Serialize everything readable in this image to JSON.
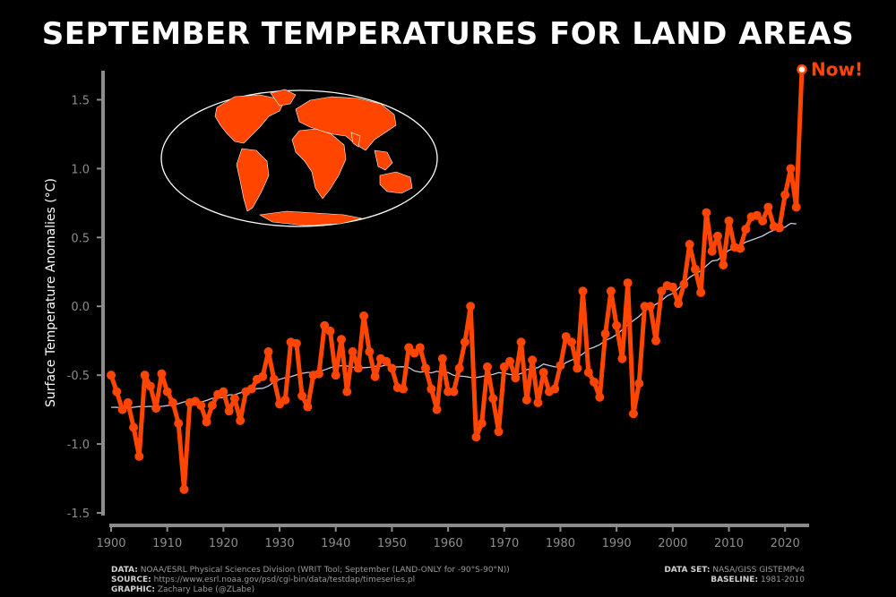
{
  "chart_data": {
    "type": "line",
    "title": "SEPTEMBER TEMPERATURES FOR LAND AREAS",
    "ylabel": "Surface Temperature Anomalies (°C)",
    "xlabel": "",
    "xlim": [
      1900,
      2023
    ],
    "ylim": [
      -1.5,
      1.75
    ],
    "xticks": [
      1900,
      1910,
      1920,
      1930,
      1940,
      1950,
      1960,
      1970,
      1980,
      1990,
      2000,
      2010,
      2020
    ],
    "yticks": [
      -1.5,
      -1.0,
      -0.5,
      0.0,
      0.5,
      1.0,
      1.5
    ],
    "annotation": "Now!",
    "colors": {
      "series": "#ff4500",
      "trend": "#c8c8e6",
      "background": "#000000",
      "axis": "#8c8c8c"
    },
    "series": [
      {
        "values": [
          [
            1900,
            -0.5
          ],
          [
            1901,
            -0.62
          ],
          [
            1902,
            -0.75
          ],
          [
            1903,
            -0.7
          ],
          [
            1904,
            -0.88
          ],
          [
            1905,
            -1.09
          ],
          [
            1906,
            -0.5
          ],
          [
            1907,
            -0.58
          ],
          [
            1908,
            -0.74
          ],
          [
            1909,
            -0.49
          ],
          [
            1910,
            -0.62
          ],
          [
            1911,
            -0.7
          ],
          [
            1912,
            -0.85
          ],
          [
            1913,
            -1.33
          ],
          [
            1914,
            -0.7
          ],
          [
            1915,
            -0.69
          ],
          [
            1916,
            -0.72
          ],
          [
            1917,
            -0.84
          ],
          [
            1918,
            -0.72
          ],
          [
            1919,
            -0.64
          ],
          [
            1920,
            -0.62
          ],
          [
            1921,
            -0.76
          ],
          [
            1922,
            -0.67
          ],
          [
            1923,
            -0.83
          ],
          [
            1924,
            -0.62
          ],
          [
            1925,
            -0.6
          ],
          [
            1926,
            -0.53
          ],
          [
            1927,
            -0.51
          ],
          [
            1928,
            -0.33
          ],
          [
            1929,
            -0.53
          ],
          [
            1930,
            -0.71
          ],
          [
            1931,
            -0.68
          ],
          [
            1932,
            -0.26
          ],
          [
            1933,
            -0.27
          ],
          [
            1934,
            -0.65
          ],
          [
            1935,
            -0.73
          ],
          [
            1936,
            -0.5
          ],
          [
            1937,
            -0.49
          ],
          [
            1938,
            -0.14
          ],
          [
            1939,
            -0.18
          ],
          [
            1940,
            -0.5
          ],
          [
            1941,
            -0.24
          ],
          [
            1942,
            -0.62
          ],
          [
            1943,
            -0.33
          ],
          [
            1944,
            -0.45
          ],
          [
            1945,
            -0.07
          ],
          [
            1946,
            -0.33
          ],
          [
            1947,
            -0.51
          ],
          [
            1948,
            -0.38
          ],
          [
            1949,
            -0.4
          ],
          [
            1950,
            -0.45
          ],
          [
            1951,
            -0.59
          ],
          [
            1952,
            -0.6
          ],
          [
            1953,
            -0.3
          ],
          [
            1954,
            -0.34
          ],
          [
            1955,
            -0.3
          ],
          [
            1956,
            -0.45
          ],
          [
            1957,
            -0.6
          ],
          [
            1958,
            -0.75
          ],
          [
            1959,
            -0.38
          ],
          [
            1960,
            -0.62
          ],
          [
            1961,
            -0.62
          ],
          [
            1962,
            -0.45
          ],
          [
            1963,
            -0.26
          ],
          [
            1964,
            0.0
          ],
          [
            1965,
            -0.95
          ],
          [
            1966,
            -0.85
          ],
          [
            1967,
            -0.44
          ],
          [
            1968,
            -0.67
          ],
          [
            1969,
            -0.91
          ],
          [
            1970,
            -0.44
          ],
          [
            1971,
            -0.4
          ],
          [
            1972,
            -0.52
          ],
          [
            1973,
            -0.26
          ],
          [
            1974,
            -0.68
          ],
          [
            1975,
            -0.39
          ],
          [
            1976,
            -0.7
          ],
          [
            1977,
            -0.48
          ],
          [
            1978,
            -0.62
          ],
          [
            1979,
            -0.6
          ],
          [
            1980,
            -0.43
          ],
          [
            1981,
            -0.22
          ],
          [
            1982,
            -0.26
          ],
          [
            1983,
            -0.45
          ],
          [
            1984,
            0.11
          ],
          [
            1985,
            -0.48
          ],
          [
            1986,
            -0.55
          ],
          [
            1987,
            -0.66
          ],
          [
            1988,
            -0.2
          ],
          [
            1989,
            0.11
          ],
          [
            1990,
            -0.14
          ],
          [
            1991,
            -0.38
          ],
          [
            1992,
            0.17
          ],
          [
            1993,
            -0.78
          ],
          [
            1994,
            -0.56
          ],
          [
            1995,
            0.0
          ],
          [
            1996,
            0.0
          ],
          [
            1997,
            -0.25
          ],
          [
            1998,
            0.11
          ],
          [
            1999,
            0.15
          ],
          [
            2000,
            0.14
          ],
          [
            2001,
            0.02
          ],
          [
            2002,
            0.16
          ],
          [
            2003,
            0.45
          ],
          [
            2004,
            0.27
          ],
          [
            2005,
            0.1
          ],
          [
            2006,
            0.68
          ],
          [
            2007,
            0.4
          ],
          [
            2008,
            0.51
          ],
          [
            2009,
            0.3
          ],
          [
            2010,
            0.62
          ],
          [
            2011,
            0.43
          ],
          [
            2012,
            0.42
          ],
          [
            2013,
            0.56
          ],
          [
            2014,
            0.65
          ],
          [
            2015,
            0.66
          ],
          [
            2016,
            0.62
          ],
          [
            2017,
            0.72
          ],
          [
            2018,
            0.58
          ],
          [
            2019,
            0.57
          ],
          [
            2020,
            0.81
          ],
          [
            2021,
            1.0
          ],
          [
            2022,
            0.72
          ],
          [
            2023,
            1.72
          ]
        ]
      }
    ]
  },
  "footer": {
    "data_label": "DATA:",
    "data_text": "NOAA/ESRL Physical Sciences Division (WRIT Tool; September (LAND-ONLY for -90°S-90°N))",
    "source_label": "SOURCE:",
    "source_text": "https://www.esrl.noaa.gov/psd/cgi-bin/data/testdap/timeseries.pl",
    "graphic_label": "GRAPHIC:",
    "graphic_text": "Zachary Labe (@ZLabe)",
    "dataset_label": "DATA SET:",
    "dataset_text": "NASA/GISS GISTEMPv4",
    "baseline_label": "BASELINE:",
    "baseline_text": "1981-2010"
  }
}
